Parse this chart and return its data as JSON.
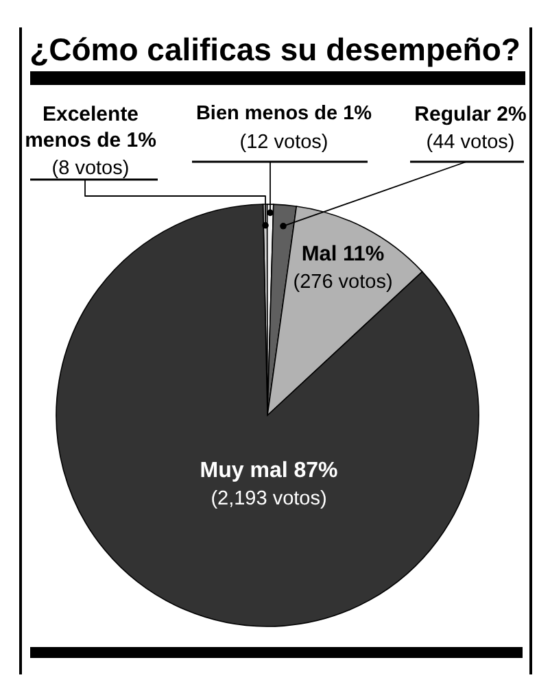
{
  "chart_data": {
    "type": "pie",
    "title": "¿Cómo calificas su desempeño?",
    "categories": [
      "Excelente menos de 1%",
      "Bien menos de 1%",
      "Regular 2%",
      "Mal 11%",
      "Muy mal 87%"
    ],
    "values": [
      8,
      12,
      44,
      276,
      2193
    ],
    "colors": [
      "#cccccc",
      "#f2f2f2",
      "#5f5f5f",
      "#b2b2b2",
      "#333333"
    ],
    "value_labels": [
      "(8 votos)",
      "(12 votos)",
      "(44 votos)",
      "(276 votos)",
      "(2,193 votos)"
    ]
  }
}
